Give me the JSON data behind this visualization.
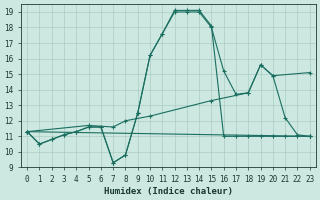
{
  "xlabel": "Humidex (Indice chaleur)",
  "bg_color": "#cce8e0",
  "grid_color": "#aaccc4",
  "line_color": "#1a6e60",
  "xlim": [
    -0.5,
    23.5
  ],
  "ylim": [
    9,
    19.5
  ],
  "yticks": [
    9,
    10,
    11,
    12,
    13,
    14,
    15,
    16,
    17,
    18,
    19
  ],
  "xticks": [
    0,
    1,
    2,
    3,
    4,
    5,
    6,
    7,
    8,
    9,
    10,
    11,
    12,
    13,
    14,
    15,
    16,
    17,
    18,
    19,
    20,
    21,
    22,
    23
  ],
  "lines": [
    {
      "x": [
        0,
        1,
        2,
        3,
        4,
        5,
        6,
        7,
        8,
        9,
        10,
        11,
        12,
        13,
        14,
        15,
        16,
        17,
        18,
        19,
        20,
        21,
        22,
        23
      ],
      "y": [
        11.3,
        10.5,
        10.8,
        11.1,
        11.3,
        11.6,
        11.6,
        9.3,
        9.8,
        12.5,
        16.2,
        17.6,
        19.1,
        19.1,
        19.1,
        18.1,
        11.0,
        11.0,
        11.0,
        11.0,
        11.0,
        11.0,
        11.0,
        11.0
      ]
    },
    {
      "x": [
        0,
        1,
        2,
        3,
        4,
        5,
        6,
        7,
        8,
        9,
        10,
        11,
        12,
        13,
        14,
        15,
        16,
        17,
        18,
        19,
        20,
        21,
        22,
        23
      ],
      "y": [
        11.3,
        10.5,
        10.8,
        11.1,
        11.3,
        11.6,
        11.6,
        9.3,
        9.8,
        12.5,
        16.2,
        17.6,
        19.0,
        19.0,
        19.0,
        18.0,
        15.2,
        13.7,
        13.8,
        15.6,
        14.9,
        12.2,
        11.1,
        11.0
      ]
    },
    {
      "x": [
        0,
        23
      ],
      "y": [
        11.3,
        11.0
      ]
    },
    {
      "x": [
        0,
        5,
        7,
        8,
        10,
        15,
        18,
        19,
        20,
        23
      ],
      "y": [
        11.3,
        11.7,
        11.6,
        12.0,
        12.3,
        13.3,
        13.8,
        15.6,
        14.9,
        15.1
      ]
    }
  ]
}
